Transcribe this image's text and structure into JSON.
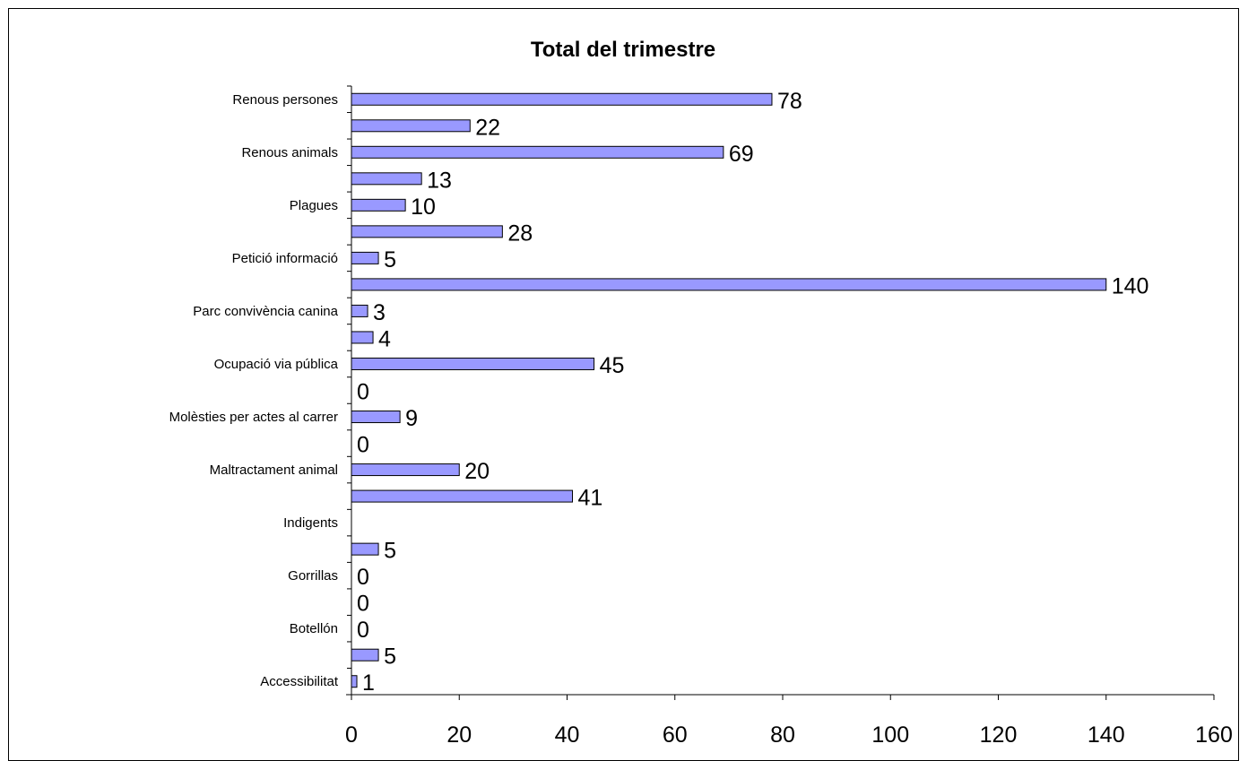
{
  "chart_data": {
    "type": "bar",
    "orientation": "horizontal",
    "title": "Total del trimestre",
    "xlabel": "",
    "ylabel": "",
    "xlim": [
      0,
      160
    ],
    "x_ticks": [
      0,
      20,
      40,
      60,
      80,
      100,
      120,
      140,
      160
    ],
    "grid": false,
    "legend": "none",
    "bar_color": "#9999FF",
    "bar_edge_color": "#000000",
    "categories": [
      "Renous persones",
      "",
      "Renous animals",
      "",
      "Plagues",
      "",
      "Petició informació",
      "",
      "Parc convivència canina",
      "",
      "Ocupació via pública",
      "",
      "Molèsties per actes al carrer",
      "",
      "Maltractament animal",
      "",
      "Indigents",
      "",
      "Gorrillas",
      "",
      "Botellón",
      "",
      "Accessibilitat"
    ],
    "values": [
      78,
      22,
      69,
      13,
      10,
      28,
      5,
      140,
      3,
      4,
      45,
      0,
      9,
      0,
      20,
      41,
      null,
      5,
      0,
      0,
      0,
      5,
      1
    ]
  }
}
